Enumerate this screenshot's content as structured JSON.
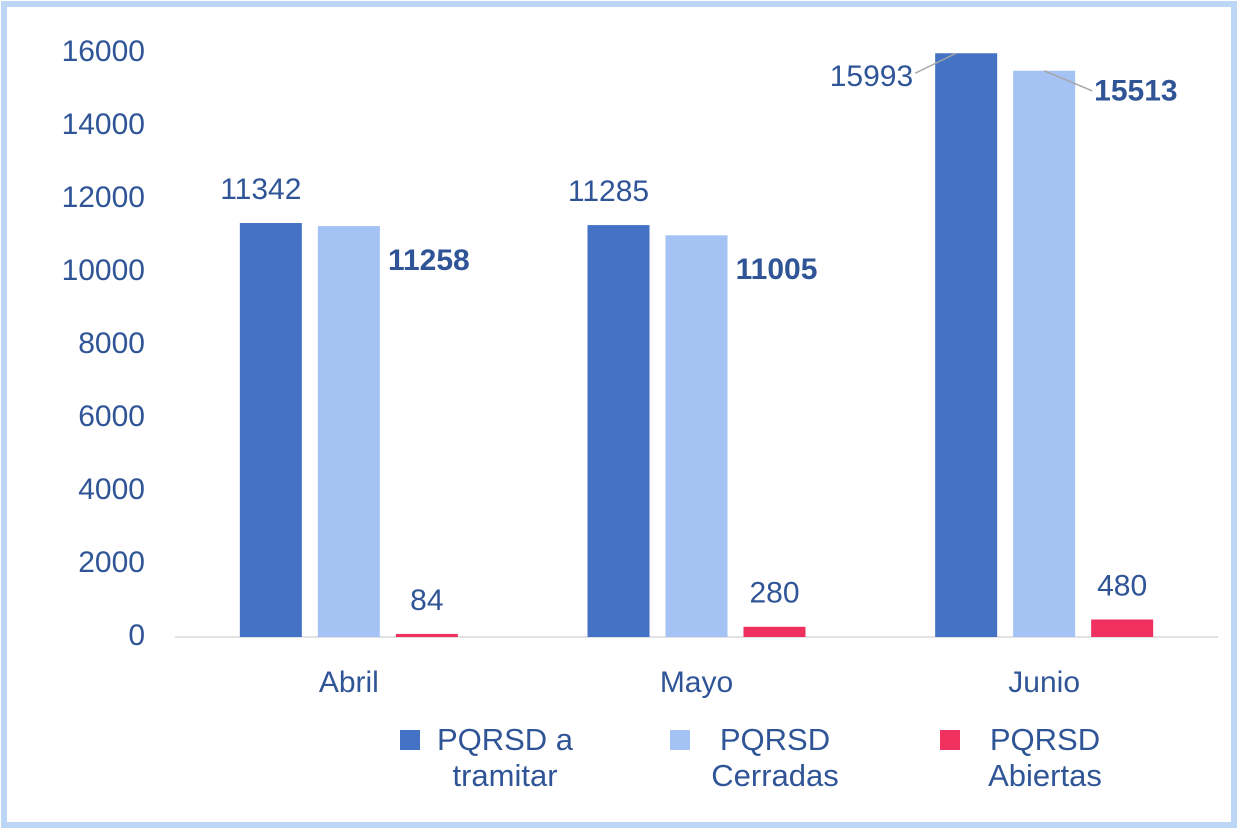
{
  "chart_data": {
    "type": "bar",
    "categories": [
      "Abril",
      "Mayo",
      "Junio"
    ],
    "series": [
      {
        "name": "PQRSD a tramitar",
        "color": "#4472c4",
        "values": [
          11342,
          11285,
          15993
        ]
      },
      {
        "name": "PQRSD Cerradas",
        "color": "#a4c2f4",
        "values": [
          11258,
          11005,
          15513
        ]
      },
      {
        "name": "PQRSD Abiertas",
        "color": "#f0305e",
        "values": [
          84,
          280,
          480
        ]
      }
    ],
    "ylim": [
      0,
      16000
    ],
    "yticks": [
      0,
      2000,
      4000,
      6000,
      8000,
      10000,
      12000,
      14000,
      16000
    ],
    "grid": false,
    "legend": "bottom"
  }
}
